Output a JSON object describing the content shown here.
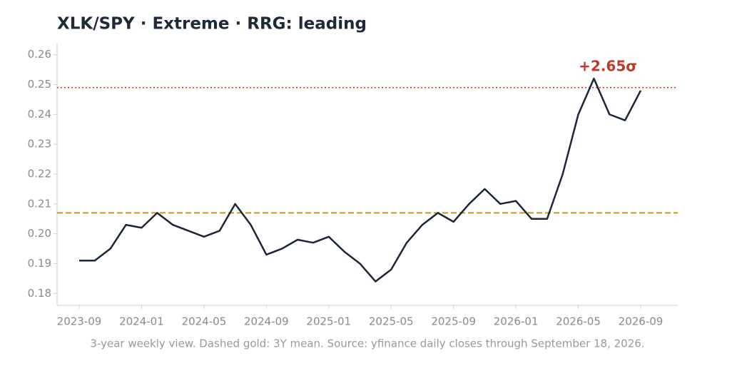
{
  "chart_data": {
    "type": "line",
    "title": "XLK/SPY  ·  Extreme  ·  RRG: leading",
    "caption": "3-year weekly view. Dashed gold: 3Y mean. Source: yfinance daily closes through September 18, 2026.",
    "x": [
      "2023-09",
      "2023-10",
      "2023-11",
      "2023-12",
      "2024-01",
      "2024-02",
      "2024-03",
      "2024-04",
      "2024-05",
      "2024-06",
      "2024-07",
      "2024-08",
      "2024-09",
      "2024-10",
      "2024-11",
      "2024-12",
      "2025-01",
      "2025-02",
      "2025-03",
      "2025-04",
      "2025-05",
      "2025-06",
      "2025-07",
      "2025-08",
      "2025-09",
      "2025-10",
      "2025-11",
      "2025-12",
      "2026-01",
      "2026-02",
      "2026-03",
      "2026-04",
      "2026-05",
      "2026-06",
      "2026-07",
      "2026-08",
      "2026-09"
    ],
    "series": [
      {
        "color": "#1c2638",
        "values": [
          0.191,
          0.191,
          0.195,
          0.203,
          0.202,
          0.207,
          0.203,
          0.201,
          0.199,
          0.201,
          0.21,
          0.203,
          0.193,
          0.195,
          0.198,
          0.197,
          0.199,
          0.194,
          0.19,
          0.184,
          0.188,
          0.197,
          0.203,
          0.207,
          0.204,
          0.21,
          0.215,
          0.21,
          0.211,
          0.205,
          0.205,
          0.22,
          0.24,
          0.252,
          0.24,
          0.238,
          0.248
        ]
      }
    ],
    "ylim": [
      0.176,
      0.264
    ],
    "yticks": [
      0.18,
      0.19,
      {
        "value": 0.2,
        "label": "0.20"
      },
      0.21,
      0.22,
      0.23,
      0.24,
      0.25,
      0.26
    ],
    "xticks": [
      "2023-09",
      "2024-01",
      "2024-05",
      "2024-09",
      "2025-01",
      "2025-05",
      "2025-09",
      "2026-01",
      "2026-05",
      "2026-09"
    ],
    "reference_lines": [
      {
        "value": 0.207,
        "color": "#c8961e",
        "style": "dashed"
      },
      {
        "value": 0.249,
        "color": "#c0392b",
        "style": "dotted",
        "label": "+2.65σ"
      }
    ]
  }
}
